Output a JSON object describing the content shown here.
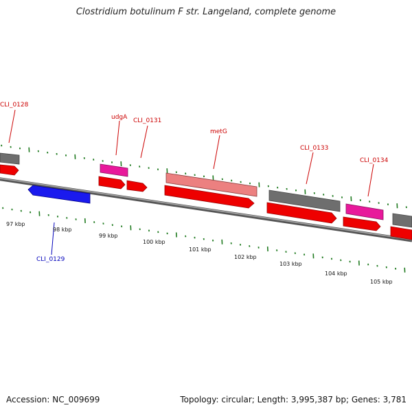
{
  "title": "Clostridium botulinum F str. Langeland, complete genome",
  "footer": {
    "accession": "Accession: NC_009699",
    "summary": "Topology: circular; Length: 3,995,387 bp; Genes: 3,781"
  },
  "colors": {
    "cds": "#ee0000",
    "cds_alt_strand": "#1a1aee",
    "hypothetical": "#6e6e6e",
    "pink": "#e8199b",
    "salmon": "#ec8080",
    "label_forward": "#cc0000",
    "label_reverse": "#0000bb",
    "tick": "#1f7a1f"
  },
  "genes": [
    {
      "name": "CLI_0128",
      "label": "CLI_0128",
      "label_color": "red"
    },
    {
      "name": "CLI_0129",
      "label": "CLI_0129",
      "label_color": "blue"
    },
    {
      "name": "udgA",
      "label": "udgA",
      "label_color": "red"
    },
    {
      "name": "CLI_0131",
      "label": "CLI_0131",
      "label_color": "red"
    },
    {
      "name": "metG",
      "label": "metG",
      "label_color": "red"
    },
    {
      "name": "CLI_0133",
      "label": "CLI_0133",
      "label_color": "red"
    },
    {
      "name": "CLI_0134",
      "label": "CLI_0134",
      "label_color": "red"
    }
  ],
  "scale_labels": [
    "97 kbp",
    "98 kbp",
    "99 kbp",
    "100 kbp",
    "101 kbp",
    "102 kbp",
    "103 kbp",
    "104 kbp",
    "105 kbp"
  ]
}
